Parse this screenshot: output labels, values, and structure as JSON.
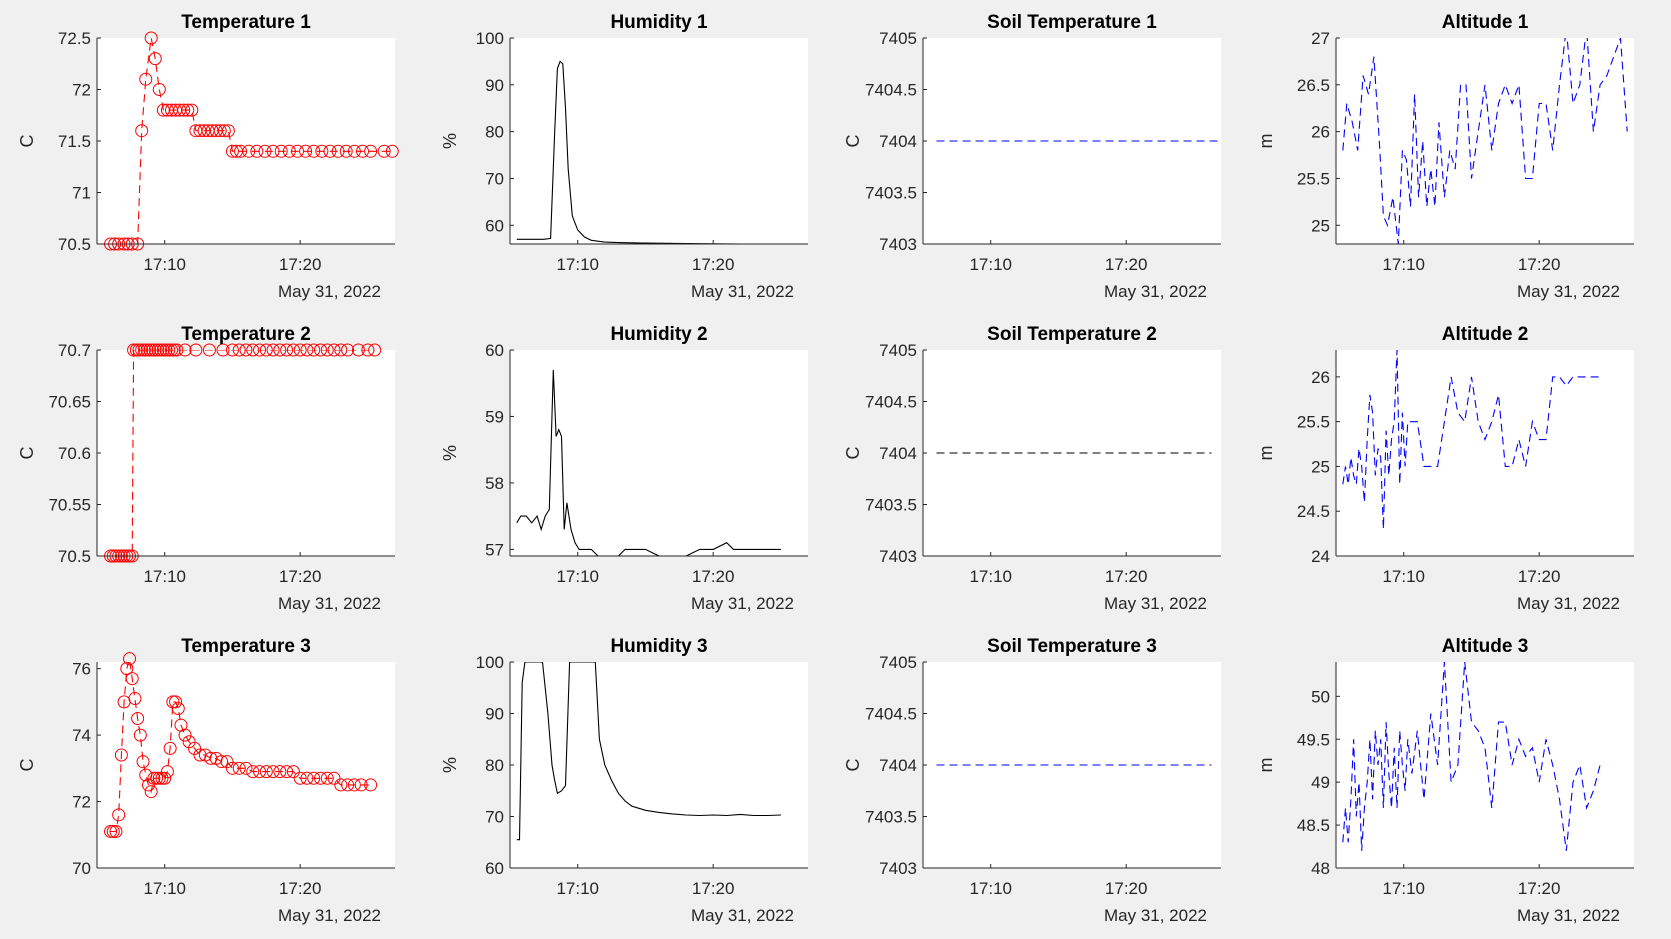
{
  "figure": {
    "background": "#f0f0f0",
    "axes_background": "#ffffff"
  },
  "chart_data": [
    {
      "type": "line",
      "title": "Temperature 1",
      "ylabel": "C",
      "x_ticks": [
        "17:10",
        "17:20"
      ],
      "x_date_label": "May 31, 2022",
      "ylim": [
        70.5,
        72.5
      ],
      "y_ticks": [
        "70.5",
        "71",
        "71.5",
        "72",
        "72.5"
      ],
      "style": {
        "color": "#ff0000",
        "dash": "dashed",
        "marker": "circle"
      },
      "x_minutes": [
        6.0,
        6.3,
        6.6,
        7.0,
        7.3,
        7.6,
        8.0,
        8.3,
        8.6,
        9.0,
        9.3,
        9.6,
        9.9,
        10.2,
        10.5,
        10.8,
        11.1,
        11.4,
        11.7,
        12.0,
        12.3,
        12.6,
        12.9,
        13.2,
        13.5,
        13.8,
        14.1,
        14.4,
        14.7,
        15.0,
        15.3,
        15.6,
        16.2,
        16.8,
        17.4,
        18.0,
        18.6,
        19.2,
        19.8,
        20.4,
        21.0,
        21.6,
        22.2,
        22.8,
        23.4,
        24.0,
        24.6,
        25.2,
        26.2,
        26.8
      ],
      "values": [
        70.5,
        70.5,
        70.5,
        70.5,
        70.5,
        70.5,
        70.5,
        71.6,
        72.1,
        72.5,
        72.3,
        72.0,
        71.8,
        71.8,
        71.8,
        71.8,
        71.8,
        71.8,
        71.8,
        71.8,
        71.6,
        71.6,
        71.6,
        71.6,
        71.6,
        71.6,
        71.6,
        71.6,
        71.6,
        71.4,
        71.4,
        71.4,
        71.4,
        71.4,
        71.4,
        71.4,
        71.4,
        71.4,
        71.4,
        71.4,
        71.4,
        71.4,
        71.4,
        71.4,
        71.4,
        71.4,
        71.4,
        71.4,
        71.4,
        71.4
      ]
    },
    {
      "type": "line",
      "title": "Humidity 1",
      "ylabel": "%",
      "x_ticks": [
        "17:10",
        "17:20"
      ],
      "x_date_label": "May 31, 2022",
      "ylim": [
        56,
        100
      ],
      "y_ticks": [
        "60",
        "70",
        "80",
        "90",
        "100"
      ],
      "style": {
        "color": "#000000",
        "dash": "solid",
        "marker": "none"
      },
      "x_minutes": [
        5.5,
        6.5,
        7.5,
        8.0,
        8.3,
        8.5,
        8.7,
        8.9,
        9.1,
        9.3,
        9.6,
        10.0,
        10.5,
        11.0,
        12.0,
        13.0,
        15.0,
        18.0,
        22.0,
        26.5
      ],
      "values": [
        57,
        57,
        57,
        57.2,
        80,
        93.5,
        95,
        94.5,
        85,
        72,
        62,
        59,
        57.5,
        56.8,
        56.4,
        56.3,
        56.2,
        56.1,
        56.0,
        56.0
      ]
    },
    {
      "type": "line",
      "title": "Soil Temperature 1",
      "ylabel": "C",
      "x_ticks": [
        "17:10",
        "17:20"
      ],
      "x_date_label": "May 31, 2022",
      "ylim": [
        7403,
        7405
      ],
      "y_ticks": [
        "7403",
        "7403.5",
        "7404",
        "7404.5",
        "7405"
      ],
      "style": {
        "color": "#0000ff",
        "dash": "dashed",
        "marker": "none"
      },
      "x_minutes": [
        6.0,
        26.8
      ],
      "values": [
        7404,
        7404
      ]
    },
    {
      "type": "line",
      "title": "Altitude 1",
      "ylabel": "m",
      "x_ticks": [
        "17:10",
        "17:20"
      ],
      "x_date_label": "May 31, 2022",
      "ylim": [
        24.8,
        27
      ],
      "y_ticks": [
        "25",
        "25.5",
        "26",
        "26.5",
        "27"
      ],
      "style": {
        "color": "#0000ff",
        "dash": "dashed",
        "marker": "none"
      },
      "x_minutes": [
        5.5,
        5.8,
        6.2,
        6.6,
        7.0,
        7.4,
        7.8,
        8.2,
        8.5,
        8.8,
        9.2,
        9.6,
        9.9,
        10.2,
        10.5,
        10.8,
        11.1,
        11.4,
        11.7,
        12.0,
        12.3,
        12.6,
        13.0,
        13.4,
        13.8,
        14.2,
        14.6,
        15.0,
        15.5,
        16.0,
        16.5,
        17.0,
        17.5,
        18.0,
        18.5,
        19.0,
        19.5,
        20.0,
        20.5,
        21.0,
        21.5,
        22.0,
        22.5,
        23.0,
        23.5,
        24.0,
        24.5,
        25.0,
        25.5,
        26.0,
        26.5
      ],
      "values": [
        25.8,
        26.3,
        26.1,
        25.8,
        26.6,
        26.4,
        26.8,
        25.9,
        25.1,
        25.0,
        25.3,
        24.8,
        25.8,
        25.7,
        25.2,
        26.4,
        25.3,
        25.9,
        25.2,
        25.6,
        25.2,
        26.1,
        25.3,
        25.8,
        25.6,
        26.5,
        26.5,
        25.5,
        26.0,
        26.5,
        25.8,
        26.3,
        26.5,
        26.3,
        26.5,
        25.5,
        25.5,
        26.3,
        26.3,
        25.8,
        26.5,
        27.1,
        26.3,
        26.5,
        27.1,
        26.0,
        26.5,
        26.6,
        26.8,
        27.0,
        26.0
      ]
    },
    {
      "type": "line",
      "title": "Temperature 2",
      "ylabel": "C",
      "x_ticks": [
        "17:10",
        "17:20"
      ],
      "x_date_label": "May 31, 2022",
      "ylim": [
        70.5,
        70.7
      ],
      "y_ticks": [
        "70.5",
        "70.55",
        "70.6",
        "70.65",
        "70.7"
      ],
      "style": {
        "color": "#ff0000",
        "dash": "dashed",
        "marker": "circle"
      },
      "x_minutes": [
        6.0,
        6.2,
        6.4,
        6.6,
        6.8,
        7.0,
        7.2,
        7.4,
        7.6,
        7.7,
        7.9,
        8.1,
        8.3,
        8.5,
        8.7,
        8.9,
        9.1,
        9.3,
        9.5,
        9.7,
        9.9,
        10.1,
        10.3,
        10.5,
        10.7,
        10.9,
        11.5,
        12.3,
        13.3,
        14.3,
        15.0,
        15.5,
        16.0,
        16.5,
        17.0,
        17.5,
        18.0,
        18.5,
        19.0,
        19.5,
        20.0,
        20.5,
        21.0,
        21.5,
        22.0,
        22.5,
        23.0,
        23.5,
        24.3,
        25.0,
        25.5
      ],
      "values": [
        70.5,
        70.5,
        70.5,
        70.5,
        70.5,
        70.5,
        70.5,
        70.5,
        70.5,
        70.7,
        70.7,
        70.7,
        70.7,
        70.7,
        70.7,
        70.7,
        70.7,
        70.7,
        70.7,
        70.7,
        70.7,
        70.7,
        70.7,
        70.7,
        70.7,
        70.7,
        70.7,
        70.7,
        70.7,
        70.7,
        70.7,
        70.7,
        70.7,
        70.7,
        70.7,
        70.7,
        70.7,
        70.7,
        70.7,
        70.7,
        70.7,
        70.7,
        70.7,
        70.7,
        70.7,
        70.7,
        70.7,
        70.7,
        70.7,
        70.7,
        70.7
      ]
    },
    {
      "type": "line",
      "title": "Humidity 2",
      "ylabel": "%",
      "x_ticks": [
        "17:10",
        "17:20"
      ],
      "x_date_label": "May 31, 2022",
      "ylim": [
        56.9,
        60
      ],
      "y_ticks": [
        "57",
        "58",
        "59",
        "60"
      ],
      "style": {
        "color": "#000000",
        "dash": "solid",
        "marker": "none"
      },
      "x_minutes": [
        5.5,
        5.8,
        6.2,
        6.6,
        7.0,
        7.3,
        7.6,
        7.9,
        8.2,
        8.4,
        8.6,
        8.8,
        9.0,
        9.2,
        9.5,
        9.8,
        10.1,
        10.5,
        11.0,
        11.5,
        12.0,
        12.5,
        13.0,
        13.5,
        14.0,
        15.0,
        16.0,
        17.0,
        18.0,
        19.0,
        20.0,
        21.0,
        21.5,
        22.0,
        23.0,
        24.0,
        25.0
      ],
      "values": [
        57.4,
        57.5,
        57.5,
        57.4,
        57.5,
        57.3,
        57.5,
        57.6,
        59.7,
        58.7,
        58.8,
        58.7,
        57.3,
        57.7,
        57.3,
        57.1,
        57.0,
        57.0,
        57.0,
        56.9,
        56.9,
        56.9,
        56.9,
        57.0,
        57.0,
        57.0,
        56.9,
        56.9,
        56.9,
        57.0,
        57.0,
        57.1,
        57.0,
        57.0,
        57.0,
        57.0,
        57.0
      ]
    },
    {
      "type": "line",
      "title": "Soil Temperature 2",
      "ylabel": "C",
      "x_ticks": [
        "17:10",
        "17:20"
      ],
      "x_date_label": "May 31, 2022",
      "ylim": [
        7403,
        7405
      ],
      "y_ticks": [
        "7403",
        "7403.5",
        "7404",
        "7404.5",
        "7405"
      ],
      "style": {
        "color": "#000000",
        "dash": "dashed",
        "marker": "none"
      },
      "x_minutes": [
        6.0,
        26.3
      ],
      "values": [
        7404,
        7404
      ]
    },
    {
      "type": "line",
      "title": "Altitude 2",
      "ylabel": "m",
      "x_ticks": [
        "17:10",
        "17:20"
      ],
      "x_date_label": "May 31, 2022",
      "ylim": [
        24,
        26.3
      ],
      "y_ticks": [
        "24",
        "24.5",
        "25",
        "25.5",
        "26"
      ],
      "style": {
        "color": "#0000ff",
        "dash": "dashed",
        "marker": "none"
      },
      "x_minutes": [
        5.5,
        5.7,
        5.9,
        6.1,
        6.3,
        6.5,
        6.7,
        6.9,
        7.1,
        7.3,
        7.5,
        7.7,
        7.9,
        8.1,
        8.3,
        8.5,
        8.7,
        8.9,
        9.1,
        9.3,
        9.5,
        9.7,
        9.9,
        10.1,
        10.3,
        10.6,
        11.0,
        11.5,
        12.0,
        12.5,
        13.0,
        13.5,
        14.0,
        14.5,
        15.0,
        15.5,
        16.0,
        16.5,
        17.0,
        17.5,
        18.0,
        18.5,
        19.0,
        19.5,
        20.0,
        20.5,
        21.0,
        21.5,
        22.0,
        22.5,
        23.0,
        23.5,
        24.0,
        24.5
      ],
      "values": [
        24.8,
        25.0,
        24.8,
        25.1,
        24.9,
        24.8,
        25.2,
        25.0,
        24.6,
        25.3,
        25.8,
        25.6,
        24.9,
        25.2,
        25.1,
        24.3,
        25.4,
        24.9,
        25.3,
        25.5,
        26.3,
        24.8,
        25.6,
        25.0,
        25.5,
        25.5,
        25.5,
        25.0,
        25.0,
        25.0,
        25.5,
        26.0,
        25.6,
        25.5,
        26.0,
        25.5,
        25.3,
        25.5,
        25.8,
        25.0,
        25.0,
        25.3,
        25.0,
        25.5,
        25.3,
        25.3,
        26.0,
        26.0,
        25.9,
        26.0,
        26.0,
        26.0,
        26.0,
        26.0
      ]
    },
    {
      "type": "line",
      "title": "Temperature 3",
      "ylabel": "C",
      "x_ticks": [
        "17:10",
        "17:20"
      ],
      "x_date_label": "May 31, 2022",
      "ylim": [
        70,
        76.2
      ],
      "y_ticks": [
        "70",
        "72",
        "74",
        "76"
      ],
      "style": {
        "color": "#ff0000",
        "dash": "dashed",
        "marker": "circle"
      },
      "x_minutes": [
        6.0,
        6.2,
        6.4,
        6.6,
        6.8,
        7.0,
        7.2,
        7.4,
        7.6,
        7.8,
        8.0,
        8.2,
        8.4,
        8.6,
        8.8,
        9.0,
        9.2,
        9.4,
        9.6,
        9.8,
        10.0,
        10.2,
        10.4,
        10.6,
        10.8,
        11.0,
        11.2,
        11.5,
        11.8,
        12.2,
        12.6,
        13.0,
        13.4,
        13.8,
        14.2,
        14.6,
        15.0,
        15.5,
        16.0,
        16.5,
        17.0,
        17.5,
        18.0,
        18.5,
        19.0,
        19.5,
        20.0,
        20.5,
        21.0,
        21.5,
        22.0,
        22.5,
        23.0,
        23.5,
        24.0,
        24.5,
        25.2
      ],
      "values": [
        71.1,
        71.1,
        71.1,
        71.6,
        73.4,
        75.0,
        76.0,
        76.3,
        75.7,
        75.1,
        74.5,
        74.0,
        73.2,
        72.8,
        72.5,
        72.3,
        72.7,
        72.7,
        72.7,
        72.7,
        72.7,
        72.9,
        73.6,
        75.0,
        75.0,
        74.8,
        74.3,
        74.0,
        73.8,
        73.6,
        73.4,
        73.4,
        73.3,
        73.3,
        73.2,
        73.2,
        73.0,
        73.0,
        73.0,
        72.9,
        72.9,
        72.9,
        72.9,
        72.9,
        72.9,
        72.9,
        72.7,
        72.7,
        72.7,
        72.7,
        72.7,
        72.7,
        72.5,
        72.5,
        72.5,
        72.5,
        72.5
      ]
    },
    {
      "type": "line",
      "title": "Humidity 3",
      "ylabel": "%",
      "x_ticks": [
        "17:10",
        "17:20"
      ],
      "x_date_label": "May 31, 2022",
      "ylim": [
        60,
        100
      ],
      "y_ticks": [
        "60",
        "70",
        "80",
        "90",
        "100"
      ],
      "style": {
        "color": "#000000",
        "dash": "solid",
        "marker": "none"
      },
      "x_minutes": [
        5.5,
        5.7,
        5.9,
        6.1,
        6.3,
        6.6,
        7.0,
        7.4,
        7.8,
        8.1,
        8.3,
        8.5,
        8.8,
        9.1,
        9.4,
        9.6,
        9.8,
        10.1,
        10.5,
        11.0,
        11.3,
        11.6,
        12.0,
        12.5,
        13.0,
        13.5,
        14.0,
        15.0,
        16.0,
        17.0,
        18.0,
        19.0,
        20.0,
        21.0,
        22.0,
        23.0,
        24.0,
        25.0
      ],
      "values": [
        65.5,
        65.5,
        96,
        100,
        100,
        100,
        100,
        100,
        90,
        80,
        77,
        74.5,
        75,
        76,
        100,
        100,
        100,
        100,
        100,
        100,
        100,
        85,
        80,
        77,
        74.5,
        73,
        72,
        71.2,
        70.8,
        70.5,
        70.3,
        70.2,
        70.3,
        70.2,
        70.4,
        70.2,
        70.2,
        70.3
      ]
    },
    {
      "type": "line",
      "title": "Soil Temperature 3",
      "ylabel": "C",
      "x_ticks": [
        "17:10",
        "17:20"
      ],
      "x_date_label": "May 31, 2022",
      "ylim": [
        7403,
        7405
      ],
      "y_ticks": [
        "7403",
        "7403.5",
        "7404",
        "7404.5",
        "7405"
      ],
      "style": {
        "color": "#0000ff",
        "dash": "dashed",
        "marker": "none"
      },
      "x_minutes": [
        6.0,
        26.3
      ],
      "values": [
        7404,
        7404
      ]
    },
    {
      "type": "line",
      "title": "Altitude 3",
      "ylabel": "m",
      "x_ticks": [
        "17:10",
        "17:20"
      ],
      "x_date_label": "May 31, 2022",
      "ylim": [
        48,
        50.4
      ],
      "y_ticks": [
        "48",
        "48.5",
        "49",
        "49.5",
        "50"
      ],
      "style": {
        "color": "#0000ff",
        "dash": "dashed",
        "marker": "none"
      },
      "x_minutes": [
        5.5,
        5.7,
        5.9,
        6.1,
        6.3,
        6.5,
        6.7,
        6.9,
        7.1,
        7.3,
        7.5,
        7.7,
        7.9,
        8.1,
        8.3,
        8.5,
        8.7,
        8.9,
        9.1,
        9.3,
        9.5,
        9.7,
        9.9,
        10.1,
        10.3,
        10.6,
        11.0,
        11.5,
        12.0,
        12.5,
        13.0,
        13.5,
        14.0,
        14.5,
        15.0,
        15.5,
        16.0,
        16.5,
        17.0,
        17.5,
        18.0,
        18.5,
        19.0,
        19.5,
        20.0,
        20.5,
        21.0,
        21.5,
        22.0,
        22.5,
        23.0,
        23.5,
        24.0,
        24.5
      ],
      "values": [
        48.3,
        48.7,
        48.3,
        48.8,
        49.5,
        48.6,
        49.0,
        48.2,
        48.7,
        49.0,
        49.5,
        48.8,
        49.6,
        49.2,
        49.5,
        48.7,
        49.7,
        49.1,
        48.7,
        49.4,
        48.7,
        49.6,
        49.2,
        48.9,
        49.5,
        49.1,
        49.6,
        48.8,
        49.8,
        49.2,
        50.4,
        49.0,
        49.2,
        50.4,
        49.7,
        49.6,
        49.4,
        48.7,
        49.7,
        49.7,
        49.2,
        49.5,
        49.3,
        49.4,
        49.0,
        49.5,
        49.2,
        48.8,
        48.2,
        49.0,
        49.2,
        48.7,
        48.9,
        49.2
      ]
    }
  ]
}
